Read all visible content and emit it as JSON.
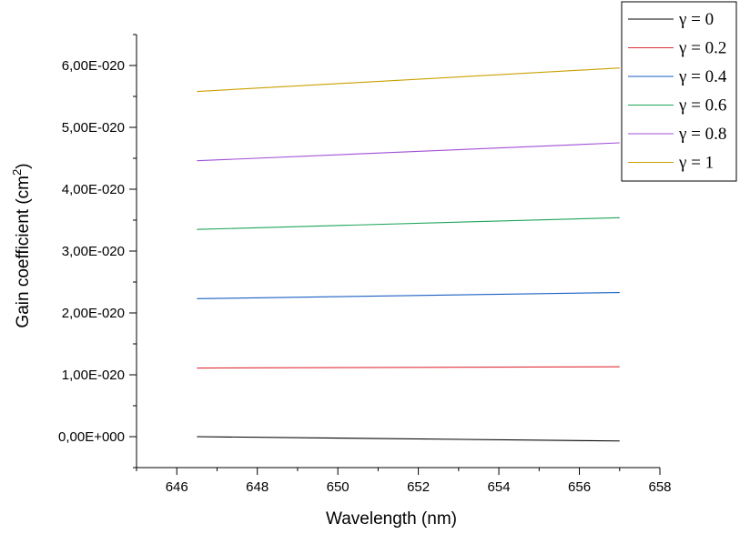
{
  "chart_data": {
    "type": "line",
    "xlabel": "Wavelength (nm)",
    "ylabel_main": "Gain coefficient (cm",
    "ylabel_sup": "2",
    "ylabel_end": ")",
    "xlim": [
      645,
      658
    ],
    "ylim": [
      -5e-21,
      6.5e-20
    ],
    "x_ticks": [
      646,
      648,
      650,
      652,
      654,
      656,
      658
    ],
    "x_tick_labels": [
      "646",
      "648",
      "650",
      "652",
      "654",
      "656",
      "658"
    ],
    "y_ticks": [
      0,
      1e-20,
      2e-20,
      3e-20,
      4e-20,
      5e-20,
      6e-20
    ],
    "y_tick_labels": [
      "0,00E+000",
      "1,00E-020",
      "2,00E-020",
      "3,00E-020",
      "4,00E-020",
      "5,00E-020",
      "6,00E-020"
    ],
    "grid": false,
    "legend_position": "top-right",
    "series": [
      {
        "name": "γ = 0",
        "color": "#000000",
        "x": [
          646.5,
          657.0
        ],
        "y": [
          0.0,
          -7e-22
        ]
      },
      {
        "name": "γ = 0.2",
        "color": "#e0303a",
        "x": [
          646.5,
          657.0
        ],
        "y": [
          1.11e-20,
          1.13e-20
        ]
      },
      {
        "name": "γ = 0.4",
        "color": "#1a5fc4",
        "x": [
          646.5,
          657.0
        ],
        "y": [
          2.23e-20,
          2.33e-20
        ]
      },
      {
        "name": "γ = 0.6",
        "color": "#1fa55a",
        "x": [
          646.5,
          657.0
        ],
        "y": [
          3.35e-20,
          3.54e-20
        ]
      },
      {
        "name": "γ = 0.8",
        "color": "#a24fd6",
        "x": [
          646.5,
          657.0
        ],
        "y": [
          4.46e-20,
          4.75e-20
        ]
      },
      {
        "name": "γ = 1",
        "color": "#c9a000",
        "x": [
          646.5,
          657.0
        ],
        "y": [
          5.58e-20,
          5.96e-20
        ]
      }
    ]
  }
}
